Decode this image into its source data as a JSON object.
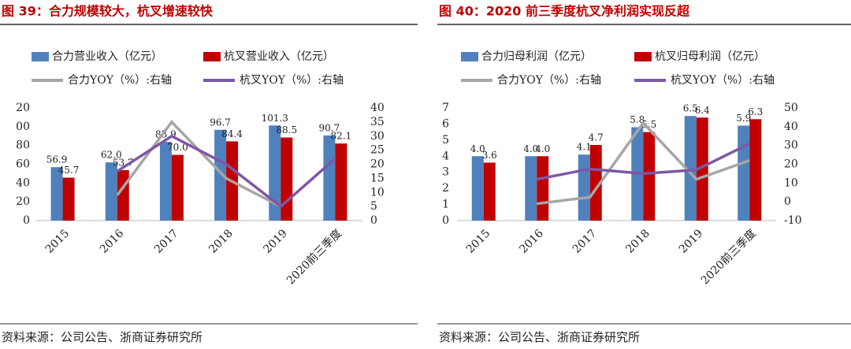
{
  "chart_data": [
    {
      "type": "bar",
      "title": "图 39：合力规模较大，杭叉增速较快",
      "categories": [
        "2015",
        "2016",
        "2017",
        "2018",
        "2019",
        "2020前三季度"
      ],
      "series": [
        {
          "name": "合力营业收入（亿元）",
          "type": "bar",
          "color": "#4f81bd",
          "values": [
            56.9,
            62.0,
            83.9,
            96.7,
            101.3,
            90.7
          ],
          "value_labels": [
            "56.9",
            "62.0",
            "83.9",
            "96.7",
            "101.3",
            "90.7"
          ]
        },
        {
          "name": "杭叉营业收入（亿元）",
          "type": "bar",
          "color": "#c00000",
          "values": [
            45.7,
            53.7,
            70.0,
            84.4,
            88.5,
            82.1
          ],
          "value_labels": [
            "45.7",
            "53.7",
            "70.0",
            "84.4",
            "88.5",
            "82.1"
          ]
        },
        {
          "name": "合力YOY（%）:右轴",
          "type": "line",
          "axis": "y2",
          "color": "#a6a6a6",
          "values": [
            null,
            9,
            35,
            15,
            5,
            null
          ]
        },
        {
          "name": "杭叉YOY（%）:右轴",
          "type": "line",
          "axis": "y2",
          "color": "#7e57a6",
          "values": [
            null,
            17.5,
            30,
            20,
            5,
            22
          ]
        }
      ],
      "ylim": [
        0,
        120
      ],
      "yticks": [
        0,
        20,
        40,
        60,
        80,
        {
          "value": 100,
          "label": "00"
        },
        {
          "value": 120,
          "label": "20"
        }
      ],
      "y2lim": [
        0,
        40
      ],
      "y2ticks": [
        0,
        5,
        10,
        15,
        20,
        25,
        30,
        35,
        40
      ],
      "source": "资料来源：公司公告、浙商证券研究所"
    },
    {
      "type": "bar",
      "title": "图 40：2020 前三季度杭叉净利润实现反超",
      "categories": [
        "2015",
        "2016",
        "2017",
        "2018",
        "2019",
        "2020前三季度"
      ],
      "series": [
        {
          "name": "合力归母利润（亿元）",
          "type": "bar",
          "color": "#4f81bd",
          "values": [
            4.0,
            4.0,
            4.1,
            5.8,
            6.5,
            5.9
          ],
          "value_labels": [
            "4.0",
            "4.0",
            "4.1",
            "5.8",
            "6.5",
            "5.9"
          ]
        },
        {
          "name": "杭叉归母利润（亿元）",
          "type": "bar",
          "color": "#c00000",
          "values": [
            3.6,
            4.0,
            4.7,
            5.5,
            6.4,
            6.3
          ],
          "value_labels": [
            "3.6",
            "4.0",
            "4.7",
            "5.5",
            "6.4",
            "6.3"
          ]
        },
        {
          "name": "合力YOY（%）:右轴",
          "type": "line",
          "axis": "y2",
          "color": "#a6a6a6",
          "values": [
            null,
            -1,
            2.5,
            42,
            12,
            22
          ]
        },
        {
          "name": "杭叉YOY（%）:右轴",
          "type": "line",
          "axis": "y2",
          "color": "#7e57a6",
          "values": [
            null,
            12,
            17.5,
            15,
            17,
            31
          ]
        }
      ],
      "ylim": [
        0,
        7
      ],
      "yticks": [
        0,
        1,
        2,
        3,
        4,
        5,
        6,
        7
      ],
      "y2lim": [
        -10,
        50
      ],
      "y2ticks": [
        -10,
        0,
        10,
        20,
        30,
        40,
        50
      ],
      "source": "资料来源：公司公告、浙商证券研究所"
    }
  ]
}
